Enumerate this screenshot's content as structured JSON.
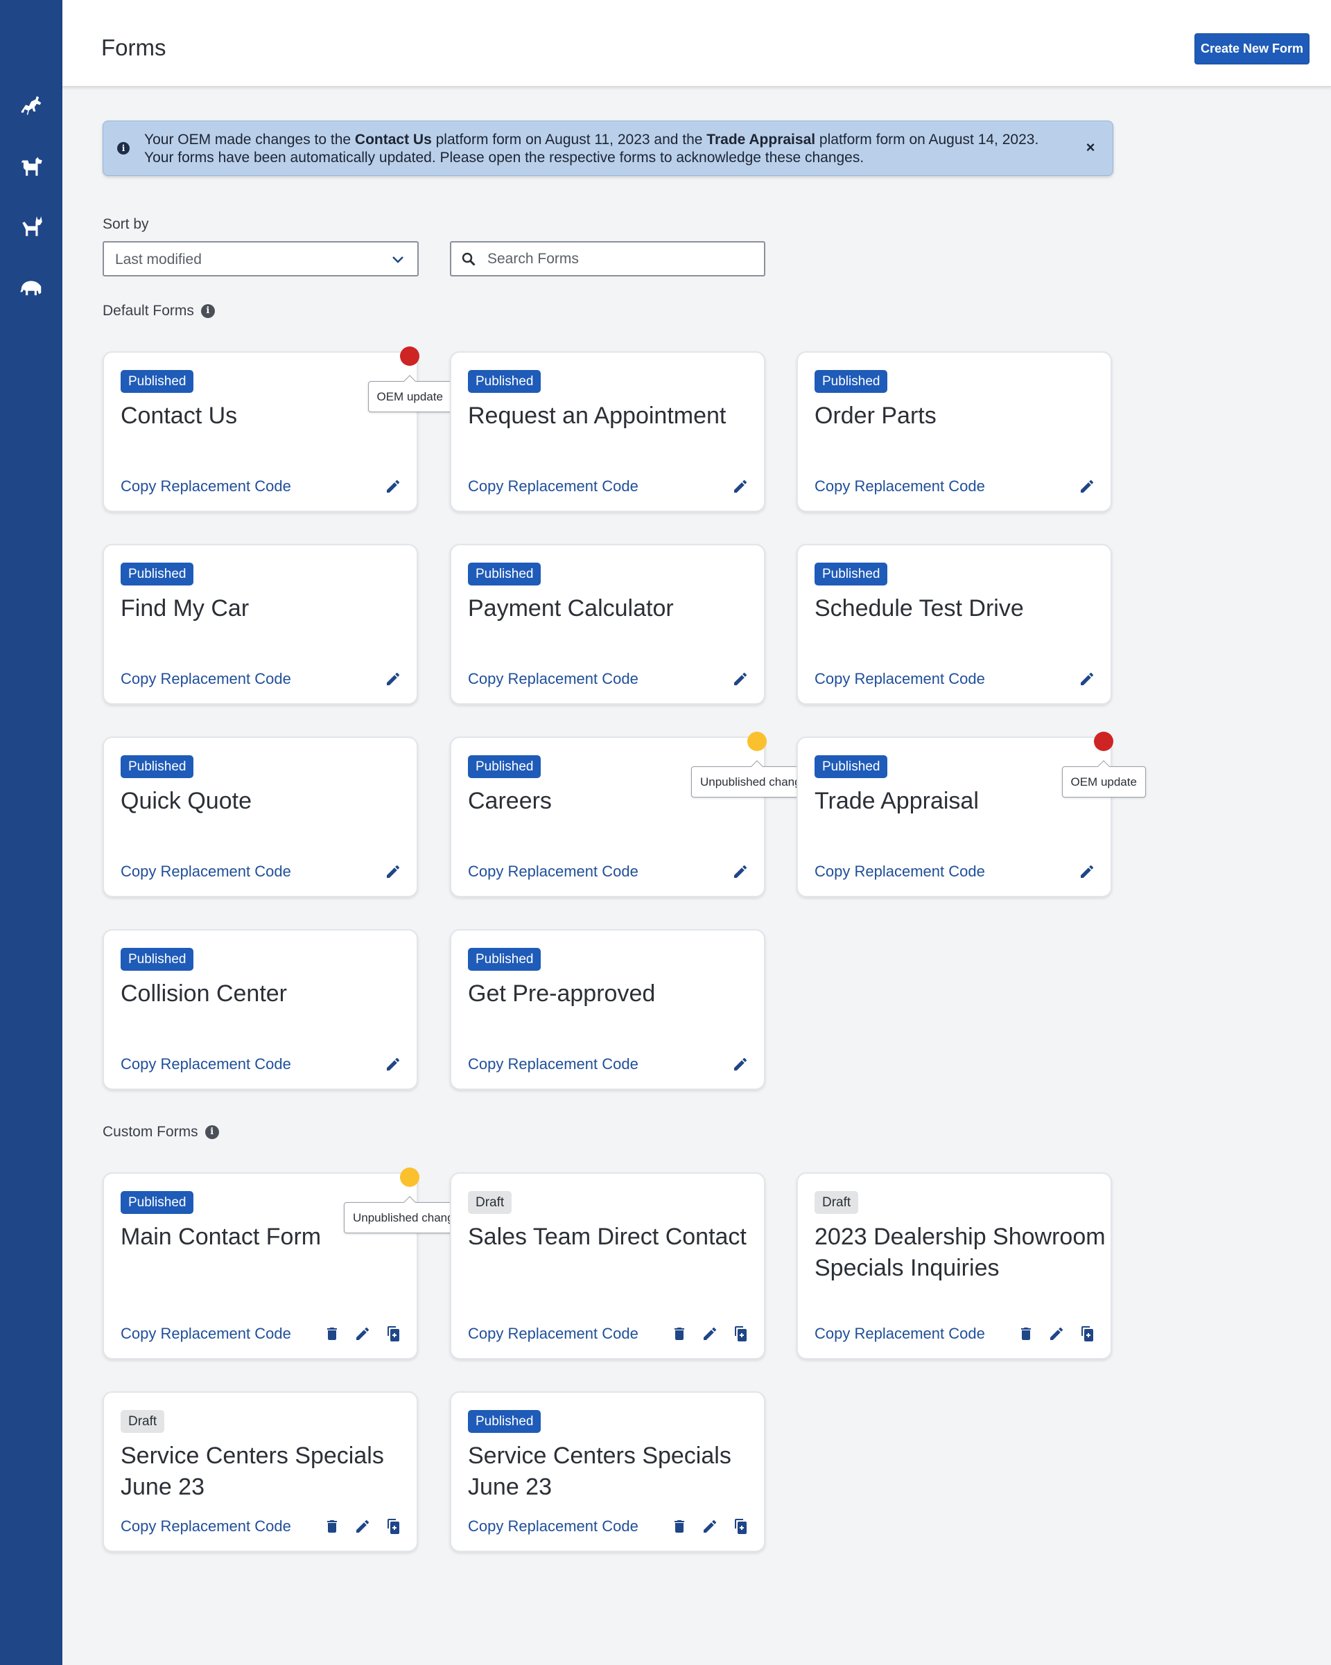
{
  "app": {
    "title": "Forms",
    "create_button": "Create New Form"
  },
  "sidebar": {
    "items": [
      {
        "icon": "horse-icon"
      },
      {
        "icon": "dog-icon"
      },
      {
        "icon": "cat-icon"
      },
      {
        "icon": "elephant-icon"
      }
    ]
  },
  "banner": {
    "text_1": "Your OEM made changes to the ",
    "form_1": "Contact Us",
    "text_2": " platform form on August 11, 2023 and the ",
    "form_2": "Trade Appraisal",
    "text_3": " platform form on August 14, 2023. Your forms have been automatically updated. Please open the respective forms to acknowledge these changes.",
    "close": "×"
  },
  "sort": {
    "label": "Sort by",
    "value": "Last modified"
  },
  "search": {
    "placeholder": "Search Forms"
  },
  "sections": {
    "default_title": "Default Forms",
    "custom_title": "Custom Forms",
    "info_glyph": "i"
  },
  "copy_label": "Copy Replacement Code",
  "default_forms": [
    {
      "status": "Published",
      "title": "Contact Us",
      "indicator": "OEM update"
    },
    {
      "status": "Published",
      "title": "Request an Appointment"
    },
    {
      "status": "Published",
      "title": "Order Parts"
    },
    {
      "status": "Published",
      "title": "Find My Car"
    },
    {
      "status": "Published",
      "title": "Payment Calculator"
    },
    {
      "status": "Published",
      "title": "Schedule Test Drive"
    },
    {
      "status": "Published",
      "title": "Quick Quote"
    },
    {
      "status": "Published",
      "title": "Careers",
      "indicator": "Unpublished changes"
    },
    {
      "status": "Published",
      "title": "Trade Appraisal",
      "indicator": "OEM update"
    },
    {
      "status": "Published",
      "title": "Collision Center"
    },
    {
      "status": "Published",
      "title": "Get Pre-approved"
    }
  ],
  "custom_forms": [
    {
      "status": "Published",
      "title": "Main Contact Form",
      "indicator": "Unpublished changes"
    },
    {
      "status": "Draft",
      "title": "Sales Team Direct Contact"
    },
    {
      "status": "Draft",
      "title": "2023 Dealership Showroom Specials Inquiries"
    },
    {
      "status": "Draft",
      "title": "Service Centers Specials June 23"
    },
    {
      "status": "Published",
      "title": "Service Centers Specials June 23"
    }
  ],
  "colors": {
    "sidebar": "#1f4687",
    "accent": "#1f5bb8",
    "link": "#1f4f9a",
    "oem_dot": "#cf2424",
    "unpublished_dot": "#fbc02d"
  }
}
